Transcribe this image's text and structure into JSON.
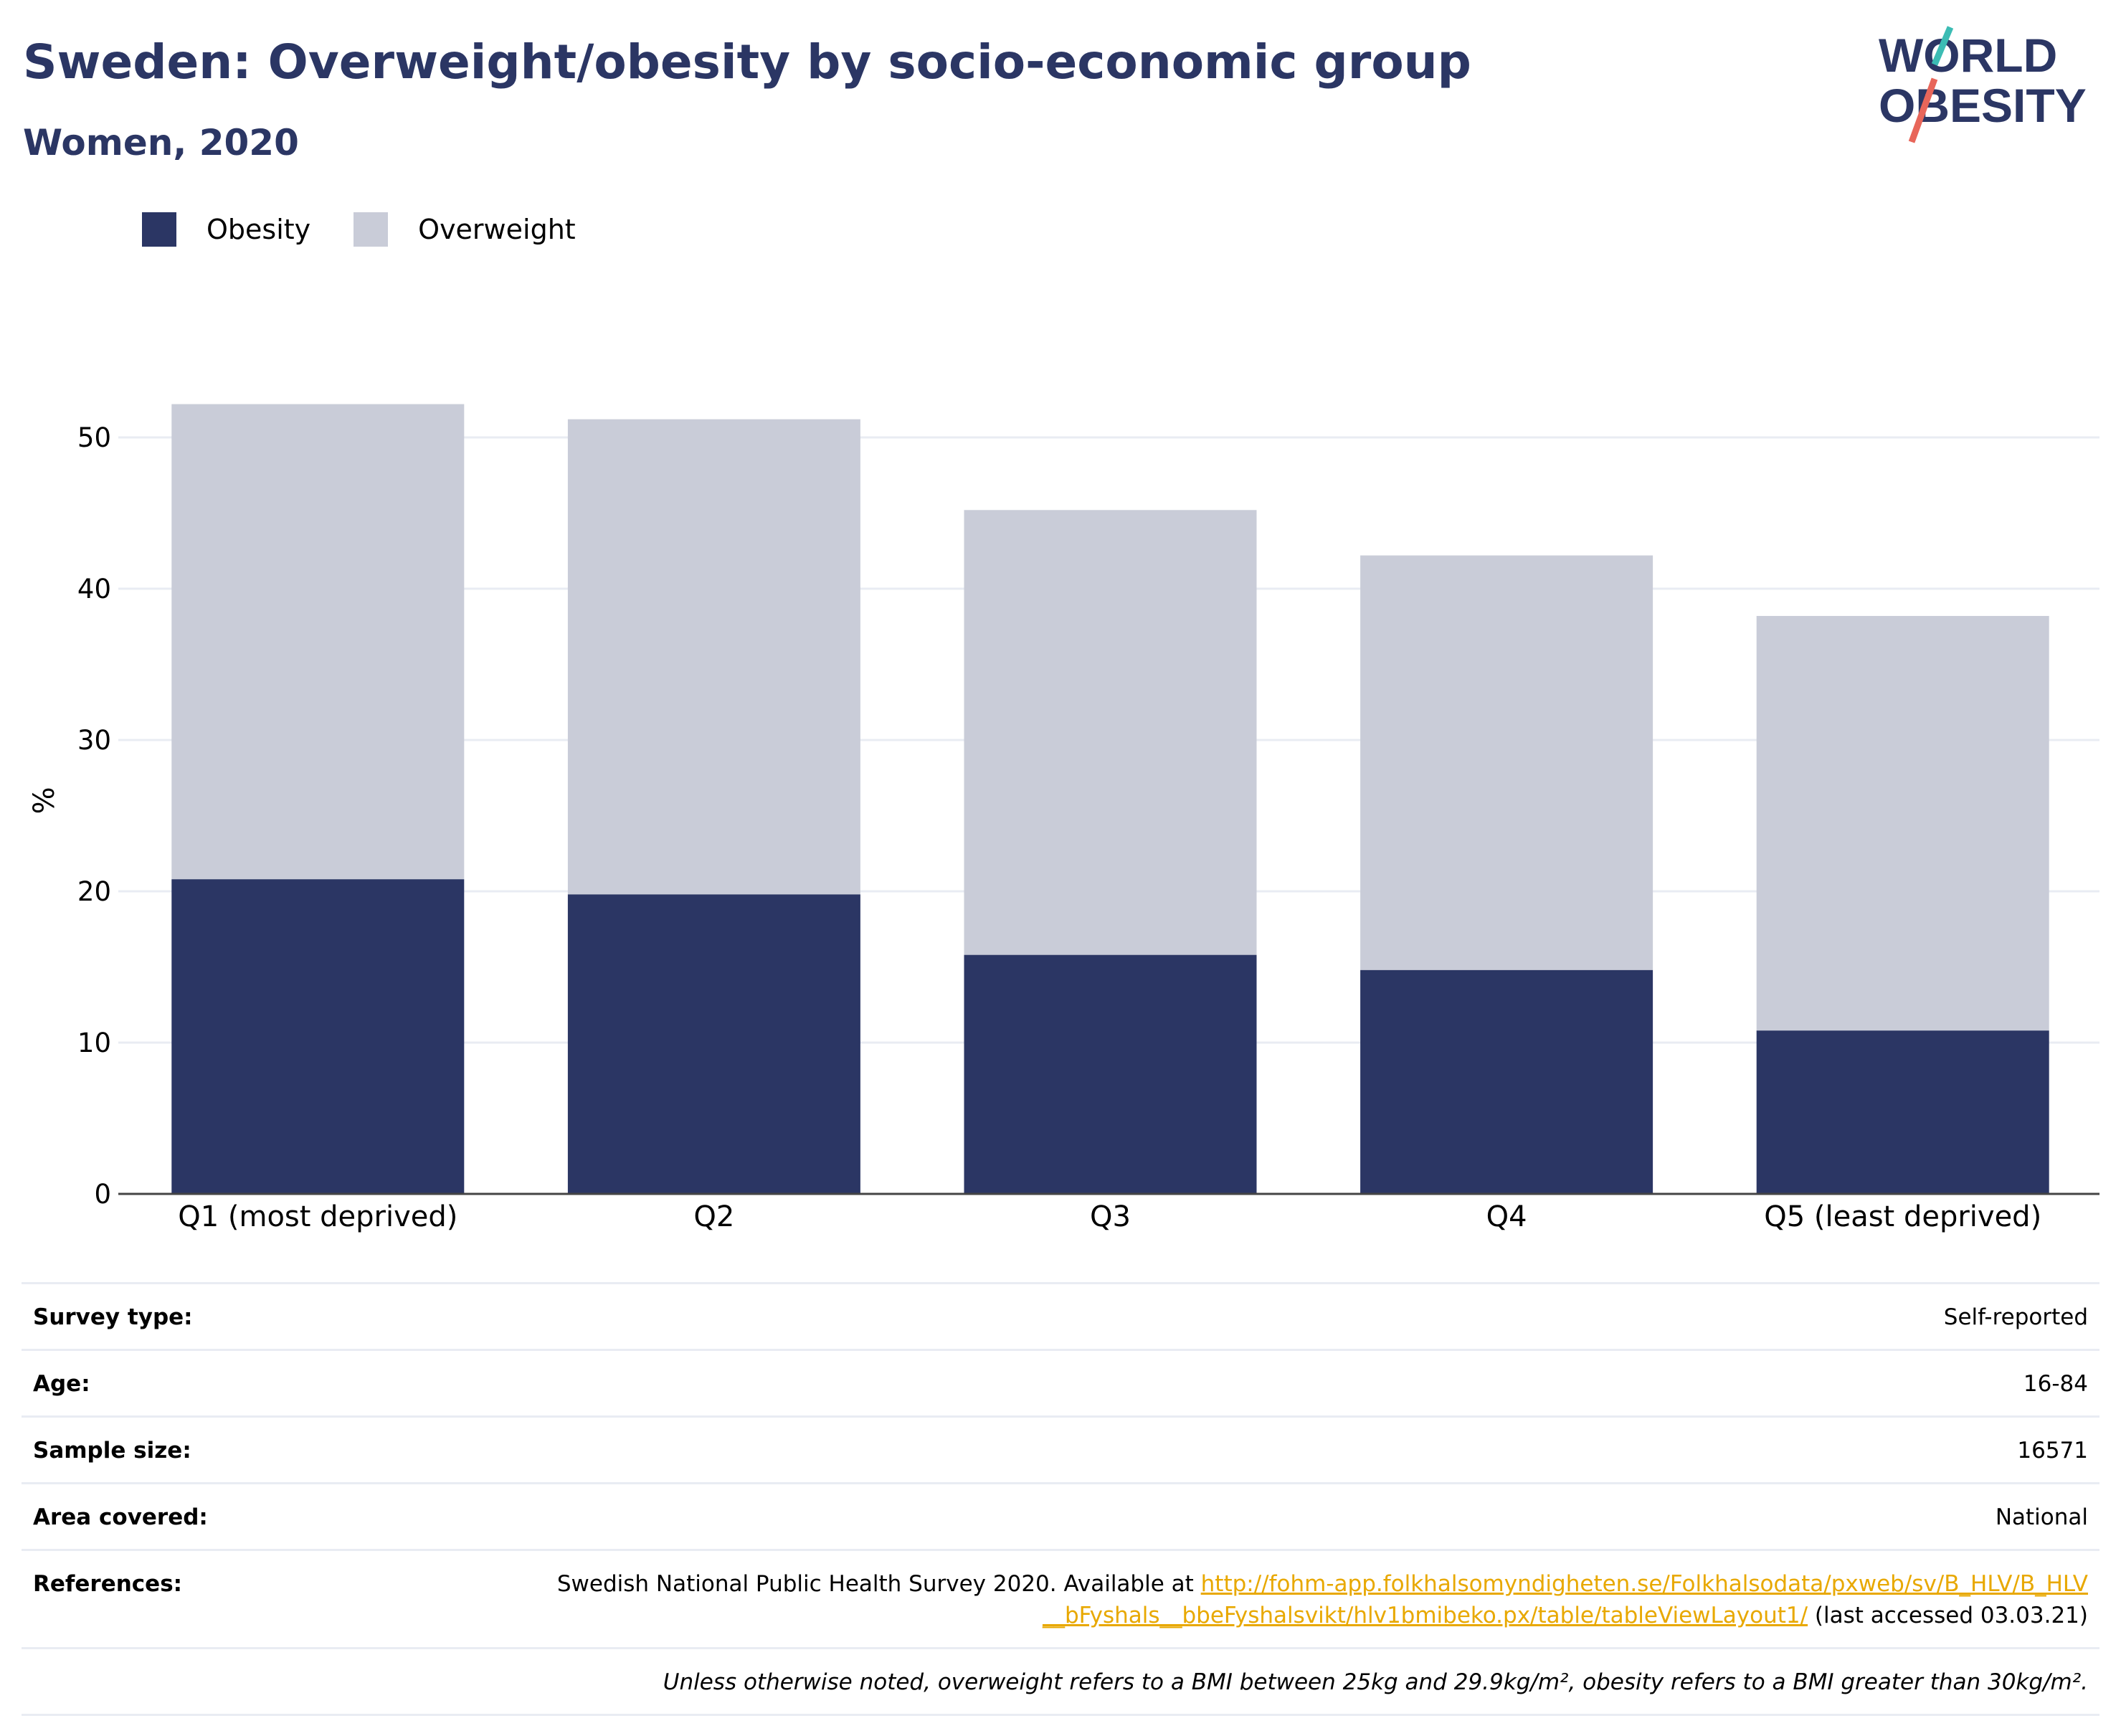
{
  "header": {
    "title": "Sweden: Overweight/obesity by socio-economic group",
    "subtitle": "Women, 2020",
    "logo_text_line1": "WORLD",
    "logo_text_line2": "OBESITY"
  },
  "legend": {
    "items": [
      {
        "label": "Obesity",
        "color": "#2b3664"
      },
      {
        "label": "Overweight",
        "color": "#c9ccd8"
      }
    ]
  },
  "chart_data": {
    "type": "bar",
    "stacked": true,
    "categories": [
      "Q1 (most deprived)",
      "Q2",
      "Q3",
      "Q4",
      "Q5 (least deprived)"
    ],
    "series": [
      {
        "name": "Obesity",
        "color": "#2b3664",
        "values": [
          20.8,
          19.8,
          15.8,
          14.8,
          10.8
        ]
      },
      {
        "name": "Overweight",
        "color": "#c9ccd8",
        "values": [
          31.4,
          31.4,
          29.4,
          27.4,
          27.4
        ]
      }
    ],
    "totals": [
      52.2,
      51.2,
      45.2,
      42.2,
      38.2
    ],
    "ylabel": "%",
    "ylim": [
      0,
      55
    ],
    "yticks": [
      0,
      10,
      20,
      30,
      40,
      50
    ],
    "grid": true,
    "legend_position": "top-left"
  },
  "meta": {
    "rows": [
      {
        "label": "Survey type:",
        "value": "Self-reported"
      },
      {
        "label": "Age:",
        "value": "16-84"
      },
      {
        "label": "Sample size:",
        "value": "16571"
      },
      {
        "label": "Area covered:",
        "value": "National"
      }
    ],
    "references": {
      "label": "References:",
      "text_before": "Swedish National Public Health Survey 2020. Available at ",
      "link": "http://fohm-app.folkhalsomyndigheten.se/Folkhalsodata/pxweb/sv/B_HLV/B_HLV__bFyshals__bbeFyshalsvikt/hlv1bmibeko.px/table/tableViewLayout1/",
      "text_after": " (last accessed 03.03.21)"
    },
    "note": "Unless otherwise noted, overweight refers to a BMI between 25kg and 29.9kg/m², obesity refers to a BMI greater than 30kg/m²."
  }
}
